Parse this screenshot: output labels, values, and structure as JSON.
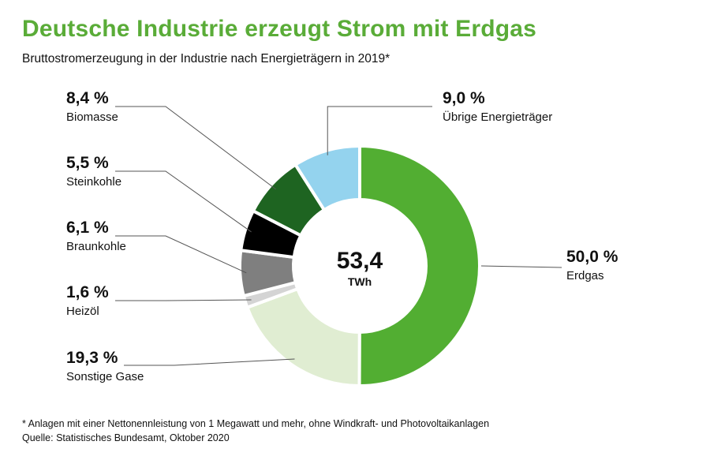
{
  "title": "Deutsche Industrie erzeugt Strom mit Erdgas",
  "subtitle": "Bruttostromerzeugung in der Industrie nach Energieträgern in 2019*",
  "chart_data": {
    "type": "pie",
    "variant": "donut",
    "title": "Deutsche Industrie erzeugt Strom mit Erdgas",
    "subtitle": "Bruttostromerzeugung in der Industrie nach Energieträgern in 2019*",
    "total": {
      "value": "53,4",
      "unit": "TWh"
    },
    "slices": [
      {
        "label": "Erdgas",
        "value": 50.0,
        "display": "50,0 %",
        "color": "#52ae32"
      },
      {
        "label": "Sonstige Gase",
        "value": 19.3,
        "display": "19,3 %",
        "color": "#e0edd2"
      },
      {
        "label": "Heizöl",
        "value": 1.6,
        "display": "1,6 %",
        "color": "#d4d4d4"
      },
      {
        "label": "Braunkohle",
        "value": 6.1,
        "display": "6,1 %",
        "color": "#7f7f7f"
      },
      {
        "label": "Steinkohle",
        "value": 5.5,
        "display": "5,5 %",
        "color": "#000000"
      },
      {
        "label": "Biomasse",
        "value": 8.4,
        "display": "8,4 %",
        "color": "#1e6421"
      },
      {
        "label": "Übrige Energieträger",
        "value": 9.0,
        "display": "9,0 %",
        "color": "#94d3ee"
      }
    ]
  },
  "footnote": {
    "line1": "* Anlagen mit einer Nettonennleistung von 1 Megawatt und mehr, ohne Windkraft- und Photovoltaikanlagen",
    "line2": "Quelle: Statistisches Bundesamt, Oktober 2020"
  }
}
